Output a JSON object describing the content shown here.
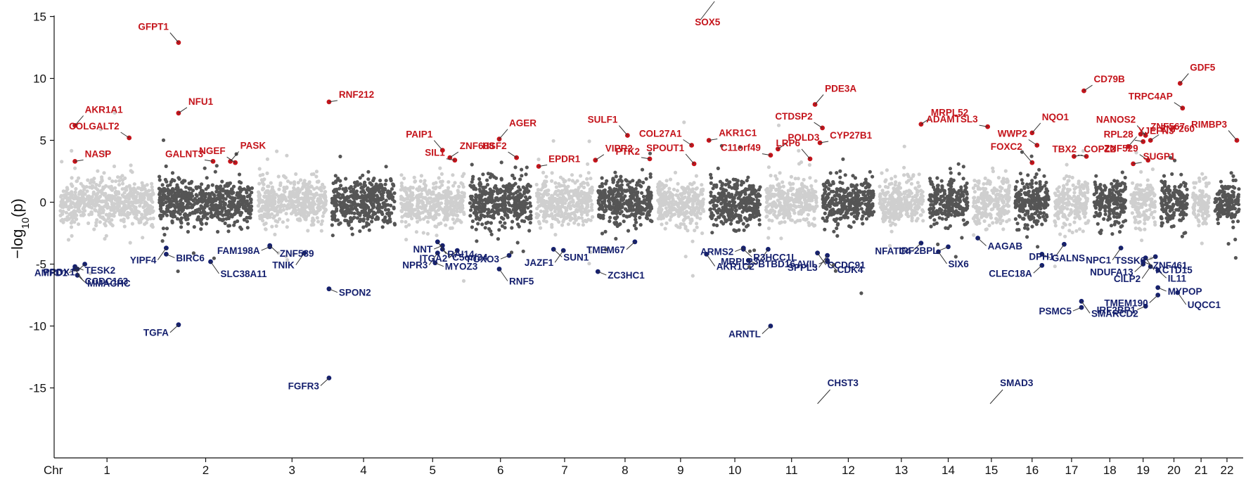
{
  "chart_data": {
    "type": "scatter",
    "title": "",
    "xlabel": "",
    "ylabel": "-log10(p)",
    "ylabel_parts": {
      "prefix": "−log",
      "sub": "10",
      "suffix": "(p)"
    },
    "xaxis_prefix": "Chr",
    "ylim": [
      -16,
      16
    ],
    "yticks": [
      -15,
      -10,
      -5,
      0,
      5,
      10,
      15
    ],
    "grid": false,
    "legend": "none",
    "colors": {
      "light": "#cfcfcf",
      "dark": "#555555",
      "up": "#c4141b",
      "down": "#15206e"
    },
    "chromosomes": [
      {
        "label": "1",
        "span": [
          0.0,
          2.0
        ]
      },
      {
        "label": "2",
        "span": [
          2.0,
          4.0
        ]
      },
      {
        "label": "3",
        "span": [
          4.0,
          5.5
        ]
      },
      {
        "label": "4",
        "span": [
          5.5,
          6.9
        ]
      },
      {
        "label": "5",
        "span": [
          6.9,
          8.3
        ]
      },
      {
        "label": "6",
        "span": [
          8.3,
          9.65
        ]
      },
      {
        "label": "7",
        "span": [
          9.65,
          10.9
        ]
      },
      {
        "label": "8",
        "span": [
          10.9,
          12.1
        ]
      },
      {
        "label": "9",
        "span": [
          12.1,
          13.15
        ]
      },
      {
        "label": "10",
        "span": [
          13.15,
          14.3
        ]
      },
      {
        "label": "11",
        "span": [
          14.3,
          15.45
        ]
      },
      {
        "label": "12",
        "span": [
          15.45,
          16.6
        ]
      },
      {
        "label": "13",
        "span": [
          16.6,
          17.6
        ]
      },
      {
        "label": "14",
        "span": [
          17.6,
          18.5
        ]
      },
      {
        "label": "15",
        "span": [
          18.5,
          19.35
        ]
      },
      {
        "label": "16",
        "span": [
          19.35,
          20.15
        ]
      },
      {
        "label": "17",
        "span": [
          20.15,
          20.95
        ]
      },
      {
        "label": "18",
        "span": [
          20.95,
          21.7
        ]
      },
      {
        "label": "19",
        "span": [
          21.7,
          22.3
        ]
      },
      {
        "label": "20",
        "span": [
          22.3,
          22.95
        ]
      },
      {
        "label": "21",
        "span": [
          22.95,
          23.4
        ]
      },
      {
        "label": "22",
        "span": [
          23.4,
          24.0
        ]
      }
    ],
    "up_genes": [
      {
        "gene": "AKR1A1",
        "x": 0.35,
        "y": 6.2
      },
      {
        "gene": "COLGALT2",
        "x": 1.45,
        "y": 5.2
      },
      {
        "gene": "NASP",
        "x": 0.35,
        "y": 3.3
      },
      {
        "gene": "GFPT1",
        "x": 2.45,
        "y": 12.9
      },
      {
        "gene": "NFU1",
        "x": 2.45,
        "y": 7.2
      },
      {
        "gene": "GALNT3",
        "x": 3.15,
        "y": 3.3
      },
      {
        "gene": "PASK",
        "x": 3.5,
        "y": 3.3
      },
      {
        "gene": "NGEF",
        "x": 3.6,
        "y": 3.2
      },
      {
        "gene": "RNF212",
        "x": 5.5,
        "y": 8.1
      },
      {
        "gene": "PAIP1",
        "x": 7.8,
        "y": 4.2
      },
      {
        "gene": "ZNF608",
        "x": 7.95,
        "y": 3.6
      },
      {
        "gene": "SIL1",
        "x": 8.05,
        "y": 3.4
      },
      {
        "gene": "AGER",
        "x": 8.95,
        "y": 5.1
      },
      {
        "gene": "HSF2",
        "x": 9.3,
        "y": 3.6
      },
      {
        "gene": "EPDR1",
        "x": 9.75,
        "y": 2.9
      },
      {
        "gene": "SULF1",
        "x": 11.55,
        "y": 5.4
      },
      {
        "gene": "VIPR2",
        "x": 10.9,
        "y": 3.4
      },
      {
        "gene": "PTK2",
        "x": 12.0,
        "y": 3.5
      },
      {
        "gene": "SOX5",
        "x": 13.2,
        "y": 16.0
      },
      {
        "gene": "COL27A1",
        "x": 12.85,
        "y": 4.6
      },
      {
        "gene": "AKR1C1",
        "x": 13.2,
        "y": 5.0
      },
      {
        "gene": "SPOUT1",
        "x": 12.9,
        "y": 3.1
      },
      {
        "gene": "POLD3",
        "x": 14.6,
        "y": 4.3
      },
      {
        "gene": "C11orf49",
        "x": 14.45,
        "y": 3.8
      },
      {
        "gene": "PDE3A",
        "x": 15.35,
        "y": 7.9
      },
      {
        "gene": "CTDSP2",
        "x": 15.5,
        "y": 6.0
      },
      {
        "gene": "CYP27B1",
        "x": 15.45,
        "y": 4.8
      },
      {
        "gene": "LRP6",
        "x": 15.25,
        "y": 3.5
      },
      {
        "gene": "MRPL52",
        "x": 17.5,
        "y": 6.3
      },
      {
        "gene": "ADAMTSL3",
        "x": 18.85,
        "y": 6.1
      },
      {
        "gene": "NQO1",
        "x": 19.75,
        "y": 5.6
      },
      {
        "gene": "WWP2",
        "x": 19.85,
        "y": 4.6
      },
      {
        "gene": "COPZ2",
        "x": 20.6,
        "y": 3.7
      },
      {
        "gene": "FOXC2",
        "x": 19.75,
        "y": 3.2
      },
      {
        "gene": "CD79B",
        "x": 20.8,
        "y": 9.0
      },
      {
        "gene": "TBX2",
        "x": 20.85,
        "y": 3.7
      },
      {
        "gene": "GDF5",
        "x": 22.75,
        "y": 9.6
      },
      {
        "gene": "TRPC4AP",
        "x": 22.8,
        "y": 7.6
      },
      {
        "gene": "ZNF567",
        "x": 21.95,
        "y": 5.5
      },
      {
        "gene": "NANOS2",
        "x": 22.05,
        "y": 5.4
      },
      {
        "gene": "ZNF260",
        "x": 22.15,
        "y": 5.0
      },
      {
        "gene": "RPL28",
        "x": 22.0,
        "y": 4.9
      },
      {
        "gene": "YJEFN3",
        "x": 21.7,
        "y": 4.5
      },
      {
        "gene": "ZNF529",
        "x": 22.1,
        "y": 3.4
      },
      {
        "gene": "SUGP1",
        "x": 21.8,
        "y": 3.1
      },
      {
        "gene": "RIMBP3",
        "x": 23.9,
        "y": 5.0
      }
    ],
    "down_genes": [
      {
        "gene": "TESK2",
        "x": 0.35,
        "y": -5.2
      },
      {
        "gene": "PRDX1",
        "x": 0.55,
        "y": -5.0
      },
      {
        "gene": "CCDC163",
        "x": 0.35,
        "y": -5.4
      },
      {
        "gene": "AMPD1",
        "x": 0.4,
        "y": -5.4
      },
      {
        "gene": "MMACHC",
        "x": 0.4,
        "y": -5.9
      },
      {
        "gene": "YIPF4",
        "x": 2.2,
        "y": -3.7
      },
      {
        "gene": "BIRC6",
        "x": 2.2,
        "y": -4.2
      },
      {
        "gene": "TGFA",
        "x": 2.45,
        "y": -9.9
      },
      {
        "gene": "SLC38A11",
        "x": 3.1,
        "y": -4.8
      },
      {
        "gene": "FAM198A",
        "x": 4.3,
        "y": -3.6
      },
      {
        "gene": "ZNF589",
        "x": 4.3,
        "y": -3.5
      },
      {
        "gene": "TNIK",
        "x": 5.0,
        "y": -4.1
      },
      {
        "gene": "SPON2",
        "x": 5.5,
        "y": -7.0
      },
      {
        "gene": "FGFR3",
        "x": 5.5,
        "y": -14.2
      },
      {
        "gene": "RAI14",
        "x": 7.7,
        "y": -3.2
      },
      {
        "gene": "NNT",
        "x": 7.8,
        "y": -3.5
      },
      {
        "gene": "C5orf34",
        "x": 7.8,
        "y": -3.8
      },
      {
        "gene": "NPR3",
        "x": 7.7,
        "y": -4.1
      },
      {
        "gene": "MYOZ3",
        "x": 7.65,
        "y": -4.9
      },
      {
        "gene": "ITGA2",
        "x": 8.1,
        "y": -3.9
      },
      {
        "gene": "RNF5",
        "x": 8.95,
        "y": -5.4
      },
      {
        "gene": "FOXO3",
        "x": 9.15,
        "y": -4.3
      },
      {
        "gene": "SUN1",
        "x": 10.05,
        "y": -3.8
      },
      {
        "gene": "JAZF1",
        "x": 10.25,
        "y": -3.9
      },
      {
        "gene": "ZC3HC1",
        "x": 10.95,
        "y": -5.6
      },
      {
        "gene": "TMEM67",
        "x": 11.7,
        "y": -3.2
      },
      {
        "gene": "AKR1C2",
        "x": 13.15,
        "y": -4.2
      },
      {
        "gene": "ARMS2",
        "x": 13.9,
        "y": -3.7
      },
      {
        "gene": "R3HCC1L",
        "x": 13.9,
        "y": -3.8
      },
      {
        "gene": "MRPL23",
        "x": 14.4,
        "y": -3.8
      },
      {
        "gene": "BTBD16",
        "x": 14.0,
        "y": -4.7
      },
      {
        "gene": "ARNTL",
        "x": 14.45,
        "y": -10.0
      },
      {
        "gene": "CCDC91",
        "x": 15.4,
        "y": -4.1
      },
      {
        "gene": "AVIL",
        "x": 15.6,
        "y": -4.7
      },
      {
        "gene": "CDK4",
        "x": 15.6,
        "y": -4.8
      },
      {
        "gene": "SPPL3",
        "x": 15.6,
        "y": -4.3
      },
      {
        "gene": "CHST3",
        "x": 15.4,
        "y": -16.0
      },
      {
        "gene": "NFATC4",
        "x": 17.5,
        "y": -3.3
      },
      {
        "gene": "SIX6",
        "x": 17.85,
        "y": -4.0
      },
      {
        "gene": "IRF2BPL",
        "x": 18.05,
        "y": -3.6
      },
      {
        "gene": "AAGAB",
        "x": 18.65,
        "y": -2.9
      },
      {
        "gene": "DPH1",
        "x": 20.4,
        "y": -3.4
      },
      {
        "gene": "GALNS",
        "x": 19.95,
        "y": -4.2
      },
      {
        "gene": "CLEC18A",
        "x": 19.95,
        "y": -5.1
      },
      {
        "gene": "SMARCD2",
        "x": 20.75,
        "y": -8.0
      },
      {
        "gene": "PSMC5",
        "x": 20.75,
        "y": -8.5
      },
      {
        "gene": "SMAD3",
        "x": 18.9,
        "y": -16.0
      },
      {
        "gene": "NPC1",
        "x": 21.55,
        "y": -3.7
      },
      {
        "gene": "ZNF461",
        "x": 22.0,
        "y": -4.8
      },
      {
        "gene": "NDUFA13",
        "x": 22.0,
        "y": -5.0
      },
      {
        "gene": "KCTD15",
        "x": 22.05,
        "y": -4.5
      },
      {
        "gene": "TSSK6",
        "x": 22.25,
        "y": -4.4
      },
      {
        "gene": "IL11",
        "x": 22.3,
        "y": -5.5
      },
      {
        "gene": "CILP2",
        "x": 22.15,
        "y": -5.2
      },
      {
        "gene": "MYPOP",
        "x": 22.3,
        "y": -6.9
      },
      {
        "gene": "TMEM190",
        "x": 22.3,
        "y": -7.5
      },
      {
        "gene": "UQCC1",
        "x": 22.7,
        "y": -7.3
      },
      {
        "gene": "IRF2BP1",
        "x": 22.05,
        "y": -8.4
      }
    ]
  }
}
